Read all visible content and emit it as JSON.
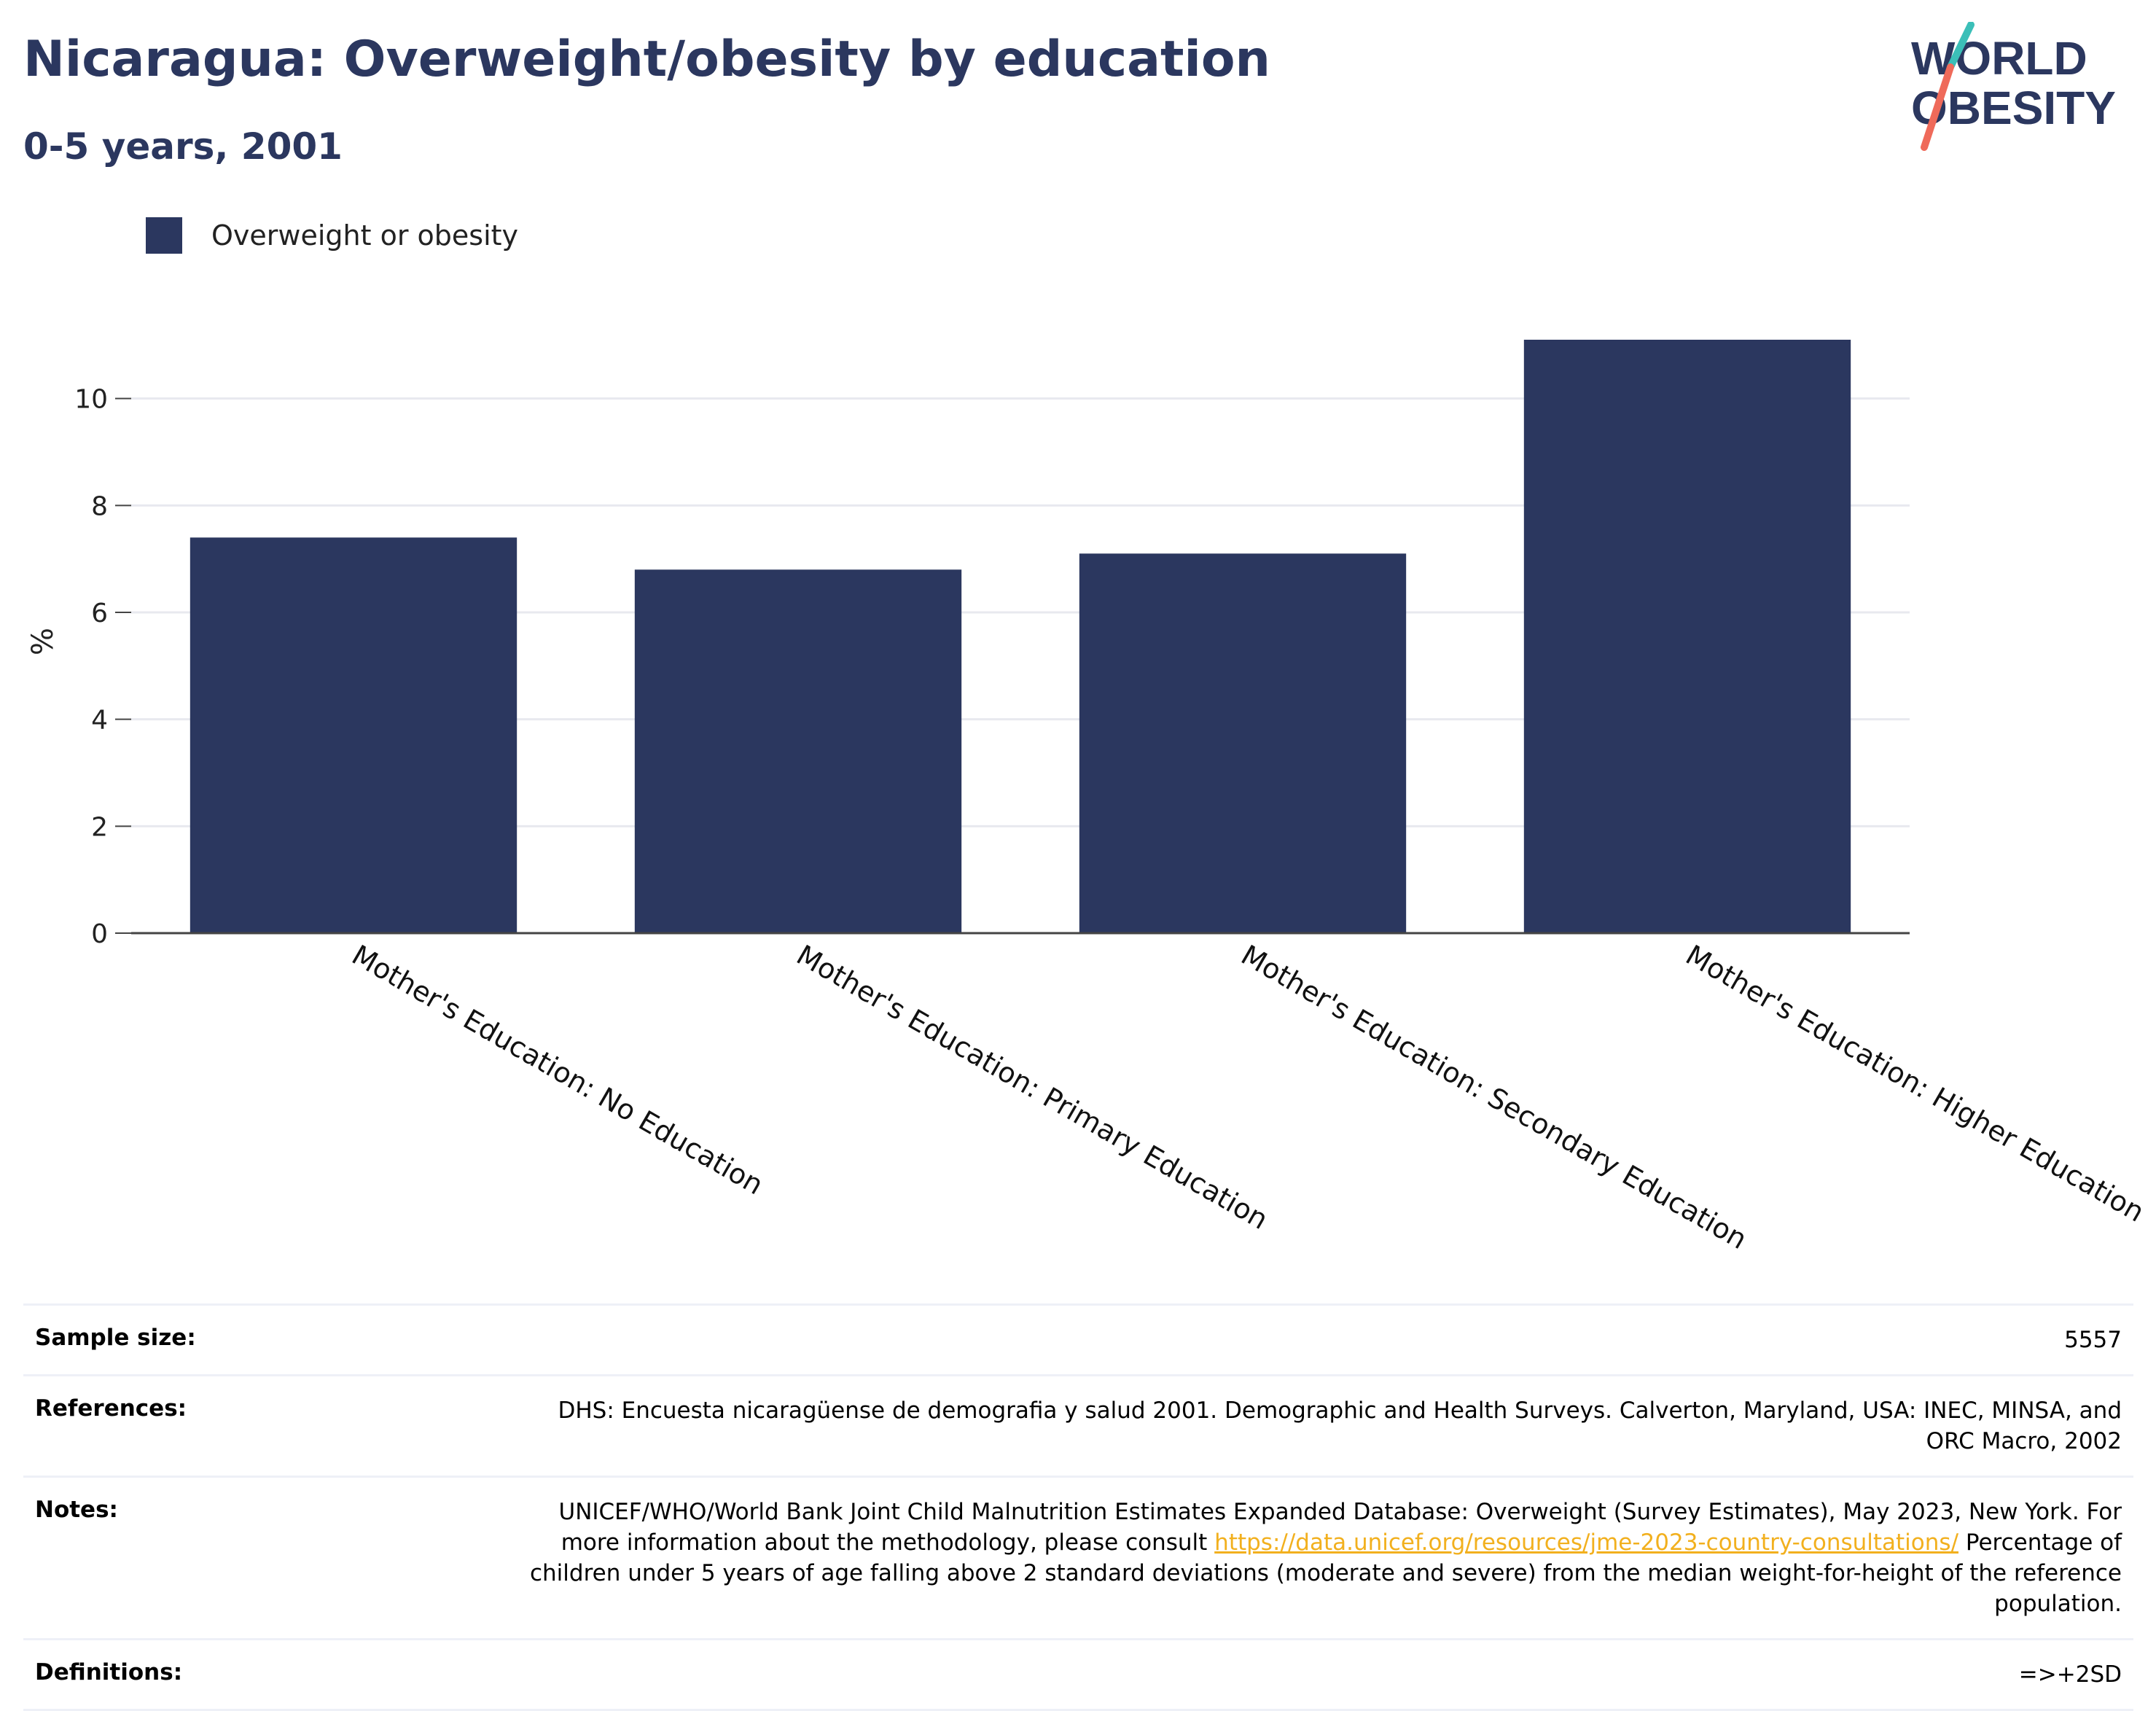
{
  "header": {
    "title": "Nicaragua: Overweight/obesity by education",
    "subtitle": "0-5 years, 2001"
  },
  "logo": {
    "line1": "WORLD",
    "line2": "OBESITY"
  },
  "chart_data": {
    "type": "bar",
    "categories": [
      "Mother's Education: No Education",
      "Mother's Education: Primary Education",
      "Mother's Education: Secondary Education",
      "Mother's Education: Higher Education"
    ],
    "series": [
      {
        "name": "Overweight or obesity",
        "values": [
          7.4,
          6.8,
          7.1,
          11.1
        ],
        "color": "#2b375f"
      }
    ],
    "ylabel": "%",
    "xlabel": "",
    "ylim": [
      0,
      12
    ],
    "yticks": [
      0,
      2,
      4,
      6,
      8,
      10
    ],
    "grid": true,
    "legend": "top-left"
  },
  "meta": {
    "sample_size_label": "Sample size:",
    "sample_size_value": "5557",
    "references_label": "References:",
    "references_value": "DHS: Encuesta nicaragüense de demografia y salud 2001. Demographic and Health Surveys. Calverton, Maryland, USA: INEC, MINSA, and ORC Macro, 2002",
    "notes_label": "Notes:",
    "notes_text_1": "UNICEF/WHO/World Bank Joint Child Malnutrition Estimates Expanded Database: Overweight (Survey Estimates), May 2023, New York. For more information about the methodology, please consult",
    "notes_link": "https://data.unicef.org/resources/jme-2023-country-consultations/",
    "notes_text_2": "Percentage of children under 5 years of age falling above 2 standard deviations (moderate and severe) from the median weight-for-height of the reference population.",
    "definitions_label": "Definitions:",
    "definitions_value": "=>+2SD"
  },
  "colors": {
    "brand": "#2b375f",
    "accent_teal": "#3bbfb8",
    "accent_red": "#ef6a5a",
    "link": "#f2b01e"
  }
}
